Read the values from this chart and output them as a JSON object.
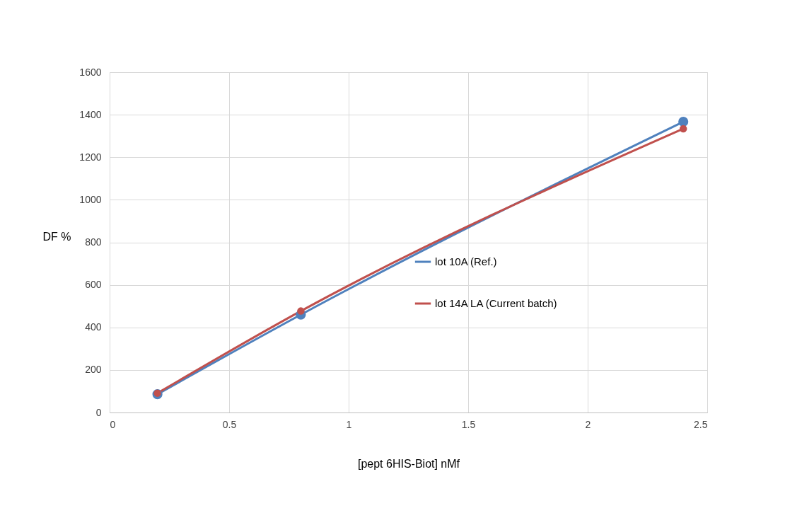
{
  "chart_data": {
    "type": "line",
    "xlabel": "[pept 6HIS-Biot] nMf",
    "ylabel": "DF %",
    "x": [
      0.2,
      0.8,
      2.4
    ],
    "series": [
      {
        "name": "lot 10A (Ref.)",
        "color": "#4f81bd",
        "values": [
          86,
          460,
          1367
        ]
      },
      {
        "name": "lot 14A LA (Current batch)",
        "color": "#c0504d",
        "values": [
          91,
          477,
          1334
        ]
      }
    ],
    "xlim": [
      0,
      2.5
    ],
    "xticks": [
      0,
      0.5,
      1,
      1.5,
      2,
      2.5
    ],
    "ylim": [
      0,
      1600
    ],
    "yticks": [
      0,
      200,
      400,
      600,
      800,
      1000,
      1200,
      1400,
      1600
    ],
    "grid": true,
    "legend": "right",
    "marker": "circle",
    "line_style": "solid"
  }
}
